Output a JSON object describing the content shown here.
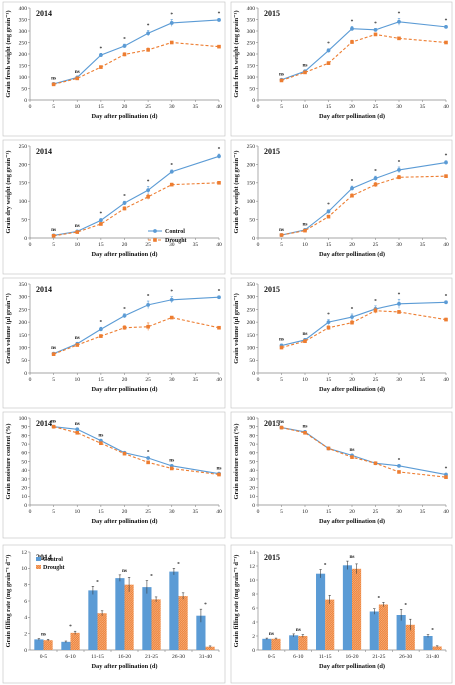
{
  "colors": {
    "control": "#5b9bd5",
    "drought": "#ed7d31",
    "axis": "#888888",
    "frame": "#bfbfbf"
  },
  "legend": {
    "control": "Control",
    "drought": "Drought"
  },
  "chart_data": [
    {
      "id": "fw14",
      "type": "line",
      "year": "2014",
      "xlabel": "Day after pollination (d)",
      "ylabel": "Grain fresh weight (mg grain⁻¹)",
      "x": [
        5,
        10,
        15,
        20,
        25,
        30,
        40
      ],
      "xlim": [
        0,
        40
      ],
      "ylim": [
        0,
        400
      ],
      "xticks": [
        "0",
        "5",
        "10",
        "15",
        "20",
        "25",
        "30",
        "35",
        "40"
      ],
      "yticks": [
        "0",
        "50",
        "100",
        "150",
        "200",
        "250",
        "300",
        "350",
        "400"
      ],
      "series": [
        {
          "name": "Control",
          "values": [
            70,
            98,
            195,
            235,
            290,
            335,
            348
          ],
          "err": [
            4,
            5,
            8,
            8,
            12,
            15,
            6
          ]
        },
        {
          "name": "Drought",
          "values": [
            68,
            94,
            143,
            198,
            218,
            250,
            232
          ],
          "err": [
            4,
            5,
            6,
            8,
            8,
            5,
            5
          ]
        }
      ],
      "annotations": [
        "ns",
        "ns",
        "*",
        "*",
        "*",
        "*",
        "*"
      ]
    },
    {
      "id": "fw15",
      "type": "line",
      "year": "2015",
      "xlabel": "Day after pollination (d)",
      "ylabel": "Grain fresh weight (mg grain⁻¹)",
      "x": [
        5,
        10,
        15,
        20,
        25,
        30,
        40
      ],
      "xlim": [
        0,
        40
      ],
      "ylim": [
        0,
        400
      ],
      "xticks": [
        "0",
        "5",
        "10",
        "15",
        "20",
        "25",
        "30",
        "35",
        "40"
      ],
      "yticks": [
        "0",
        "50",
        "100",
        "150",
        "200",
        "250",
        "300",
        "350",
        "400"
      ],
      "series": [
        {
          "name": "Control",
          "values": [
            88,
            125,
            215,
            310,
            305,
            340,
            318
          ],
          "err": [
            4,
            5,
            8,
            10,
            6,
            15,
            6
          ]
        },
        {
          "name": "Drought",
          "values": [
            85,
            120,
            160,
            252,
            285,
            268,
            250
          ],
          "err": [
            4,
            5,
            7,
            8,
            6,
            5,
            5
          ]
        }
      ],
      "annotations": [
        "ns",
        "ns",
        "*",
        "*",
        "*",
        "*",
        "*"
      ]
    },
    {
      "id": "dw14",
      "type": "line",
      "year": "2014",
      "xlabel": "Day after pollination (d)",
      "ylabel": "Grain dry weight (mg grain⁻¹)",
      "x": [
        5,
        10,
        15,
        20,
        25,
        30,
        40
      ],
      "xlim": [
        0,
        40
      ],
      "ylim": [
        0,
        250
      ],
      "xticks": [
        "0",
        "5",
        "10",
        "15",
        "20",
        "25",
        "30",
        "35",
        "40"
      ],
      "yticks": [
        "0",
        "50",
        "100",
        "150",
        "200",
        "250"
      ],
      "series": [
        {
          "name": "Control",
          "values": [
            7,
            18,
            48,
            95,
            130,
            180,
            222
          ],
          "err": [
            2,
            3,
            5,
            5,
            10,
            5,
            6
          ]
        },
        {
          "name": "Drought",
          "values": [
            6,
            16,
            38,
            80,
            112,
            145,
            150
          ],
          "err": [
            2,
            3,
            4,
            5,
            7,
            4,
            3
          ]
        }
      ],
      "annotations": [
        "ns",
        "ns",
        "*",
        "*",
        "*",
        "*",
        "*"
      ]
    },
    {
      "id": "dw15",
      "type": "line",
      "year": "2015",
      "xlabel": "Day after pollination (d)",
      "ylabel": "Grain dry weight (mg grain⁻¹)",
      "x": [
        5,
        10,
        15,
        20,
        25,
        30,
        40
      ],
      "xlim": [
        0,
        40
      ],
      "ylim": [
        0,
        250
      ],
      "xticks": [
        "0",
        "5",
        "10",
        "15",
        "20",
        "25",
        "30",
        "35",
        "40"
      ],
      "yticks": [
        "0",
        "50",
        "100",
        "150",
        "200",
        "250"
      ],
      "series": [
        {
          "name": "Control",
          "values": [
            8,
            22,
            72,
            135,
            162,
            185,
            205
          ],
          "err": [
            2,
            3,
            5,
            6,
            6,
            8,
            5
          ]
        },
        {
          "name": "Drought",
          "values": [
            8,
            20,
            58,
            115,
            145,
            165,
            168
          ],
          "err": [
            2,
            3,
            4,
            5,
            6,
            5,
            4
          ]
        }
      ],
      "annotations": [
        "ns",
        "ns",
        "*",
        "*",
        "*",
        "*",
        "*"
      ]
    },
    {
      "id": "gv14",
      "type": "line",
      "year": "2014",
      "xlabel": "Day after pollination (d)",
      "ylabel": "Grain volume (μl grain⁻¹)",
      "x": [
        5,
        10,
        15,
        20,
        25,
        30,
        40
      ],
      "xlim": [
        0,
        40
      ],
      "ylim": [
        0,
        350
      ],
      "xticks": [
        "0",
        "5",
        "10",
        "15",
        "20",
        "25",
        "30",
        "35",
        "40"
      ],
      "yticks": [
        "0",
        "50",
        "100",
        "150",
        "200",
        "250",
        "300",
        "350"
      ],
      "series": [
        {
          "name": "Control",
          "values": [
            76,
            115,
            172,
            225,
            268,
            288,
            298
          ],
          "err": [
            4,
            5,
            8,
            8,
            15,
            12,
            5
          ]
        },
        {
          "name": "Drought",
          "values": [
            74,
            110,
            145,
            178,
            182,
            218,
            178
          ],
          "err": [
            4,
            5,
            6,
            8,
            15,
            5,
            5
          ]
        }
      ],
      "annotations": [
        "ns",
        "ns",
        "*",
        "*",
        "*",
        "*",
        "*"
      ]
    },
    {
      "id": "gv15",
      "type": "line",
      "year": "2015",
      "xlabel": "Day after pollination (d)",
      "ylabel": "Grain volume (μl grain⁻¹)",
      "x": [
        5,
        10,
        15,
        20,
        25,
        30,
        40
      ],
      "xlim": [
        0,
        40
      ],
      "ylim": [
        0,
        350
      ],
      "xticks": [
        "0",
        "5",
        "10",
        "15",
        "20",
        "25",
        "30",
        "35",
        "40"
      ],
      "yticks": [
        "0",
        "50",
        "100",
        "150",
        "200",
        "250",
        "300",
        "350"
      ],
      "series": [
        {
          "name": "Control",
          "values": [
            108,
            130,
            200,
            220,
            252,
            272,
            278
          ],
          "err": [
            6,
            6,
            10,
            12,
            12,
            18,
            6
          ]
        },
        {
          "name": "Drought",
          "values": [
            100,
            125,
            178,
            198,
            245,
            240,
            210
          ],
          "err": [
            6,
            6,
            8,
            8,
            10,
            6,
            6
          ]
        }
      ],
      "annotations": [
        "ns",
        "ns",
        "*",
        "*",
        "*",
        "*",
        "*"
      ]
    },
    {
      "id": "mc14",
      "type": "line",
      "year": "2014",
      "xlabel": "Day after pollination (d)",
      "ylabel": "Grain moisture content (%)",
      "x": [
        5,
        10,
        15,
        20,
        25,
        30,
        40
      ],
      "xlim": [
        0,
        40
      ],
      "ylim": [
        0,
        100
      ],
      "xticks": [
        "0",
        "5",
        "10",
        "15",
        "20",
        "25",
        "30",
        "35",
        "40"
      ],
      "yticks": [
        "0",
        "10",
        "20",
        "30",
        "40",
        "50",
        "60",
        "70",
        "80",
        "90",
        "100"
      ],
      "series": [
        {
          "name": "Control",
          "values": [
            90,
            87,
            74,
            60,
            54,
            45,
            36
          ],
          "err": [
            1,
            1,
            1,
            1,
            1,
            1,
            1
          ]
        },
        {
          "name": "Drought",
          "values": [
            90,
            83,
            71,
            59,
            49,
            42,
            35
          ],
          "err": [
            1,
            1,
            1,
            1,
            1,
            1,
            1
          ]
        }
      ],
      "annotations": [
        "ns",
        "ns",
        "ns",
        "",
        "*",
        "ns",
        "ns"
      ]
    },
    {
      "id": "mc15",
      "type": "line",
      "year": "2015",
      "xlabel": "Day after pollination (d)",
      "ylabel": "Grain moisture content (%)",
      "x": [
        5,
        10,
        15,
        20,
        25,
        30,
        40
      ],
      "xlim": [
        0,
        40
      ],
      "ylim": [
        0,
        100
      ],
      "xticks": [
        "0",
        "5",
        "10",
        "15",
        "20",
        "25",
        "30",
        "35",
        "40"
      ],
      "yticks": [
        "0",
        "10",
        "20",
        "30",
        "40",
        "50",
        "60",
        "70",
        "80",
        "90",
        "100"
      ],
      "series": [
        {
          "name": "Control",
          "values": [
            89,
            84,
            65,
            57,
            48,
            45,
            35
          ],
          "err": [
            1,
            1,
            1,
            1,
            1,
            1,
            1
          ]
        },
        {
          "name": "Drought",
          "values": [
            89,
            83,
            65,
            55,
            48,
            38,
            32
          ],
          "err": [
            1,
            1,
            1,
            1,
            1,
            1,
            1
          ]
        }
      ],
      "annotations": [
        "ns",
        "ns",
        "",
        "ns",
        "",
        "*",
        "*"
      ]
    },
    {
      "id": "fr14",
      "type": "bar",
      "year": "2014",
      "xlabel": "Day after pollination (d)",
      "ylabel": "Grain filling rate (mg grain⁻¹ d⁻¹)",
      "categories": [
        "0-5",
        "6-10",
        "11-15",
        "16-20",
        "21-25",
        "26-30",
        "31-40"
      ],
      "ylim": [
        0,
        12
      ],
      "yticks": [
        "0",
        "2",
        "4",
        "6",
        "8",
        "10",
        "12"
      ],
      "series": [
        {
          "name": "Control",
          "values": [
            1.3,
            1.0,
            7.3,
            8.8,
            7.7,
            9.6,
            4.2
          ],
          "err": [
            0.1,
            0.1,
            0.5,
            0.4,
            0.8,
            0.4,
            0.8
          ]
        },
        {
          "name": "Drought",
          "values": [
            1.2,
            2.1,
            4.5,
            8.0,
            6.2,
            6.6,
            0.4
          ],
          "err": [
            0.1,
            0.2,
            0.3,
            0.9,
            0.3,
            0.4,
            0.1
          ]
        }
      ],
      "annotations": [
        "ns",
        "*",
        "*",
        "ns",
        "*",
        "*",
        "*"
      ]
    },
    {
      "id": "fr15",
      "type": "bar",
      "year": "2015",
      "xlabel": "Day after pollination (d)",
      "ylabel": "Grain filling rate (mg grain⁻¹ d⁻¹)",
      "categories": [
        "0-5",
        "6-10",
        "11-15",
        "16-20",
        "21-25",
        "26-30",
        "31-40"
      ],
      "ylim": [
        0,
        14
      ],
      "yticks": [
        "0",
        "2",
        "4",
        "6",
        "8",
        "10",
        "12",
        "14"
      ],
      "series": [
        {
          "name": "Control",
          "values": [
            1.6,
            2.1,
            10.9,
            12.1,
            5.5,
            5.0,
            2.0
          ],
          "err": [
            0.1,
            0.2,
            0.6,
            0.6,
            0.4,
            0.8,
            0.2
          ]
        },
        {
          "name": "Drought",
          "values": [
            1.6,
            2.0,
            7.2,
            11.6,
            6.5,
            3.6,
            0.5
          ],
          "err": [
            0.1,
            0.2,
            0.6,
            0.7,
            0.3,
            0.8,
            0.1
          ]
        }
      ],
      "annotations": [
        "ns",
        "ns",
        "*",
        "ns",
        "*",
        "*",
        "*"
      ]
    }
  ]
}
